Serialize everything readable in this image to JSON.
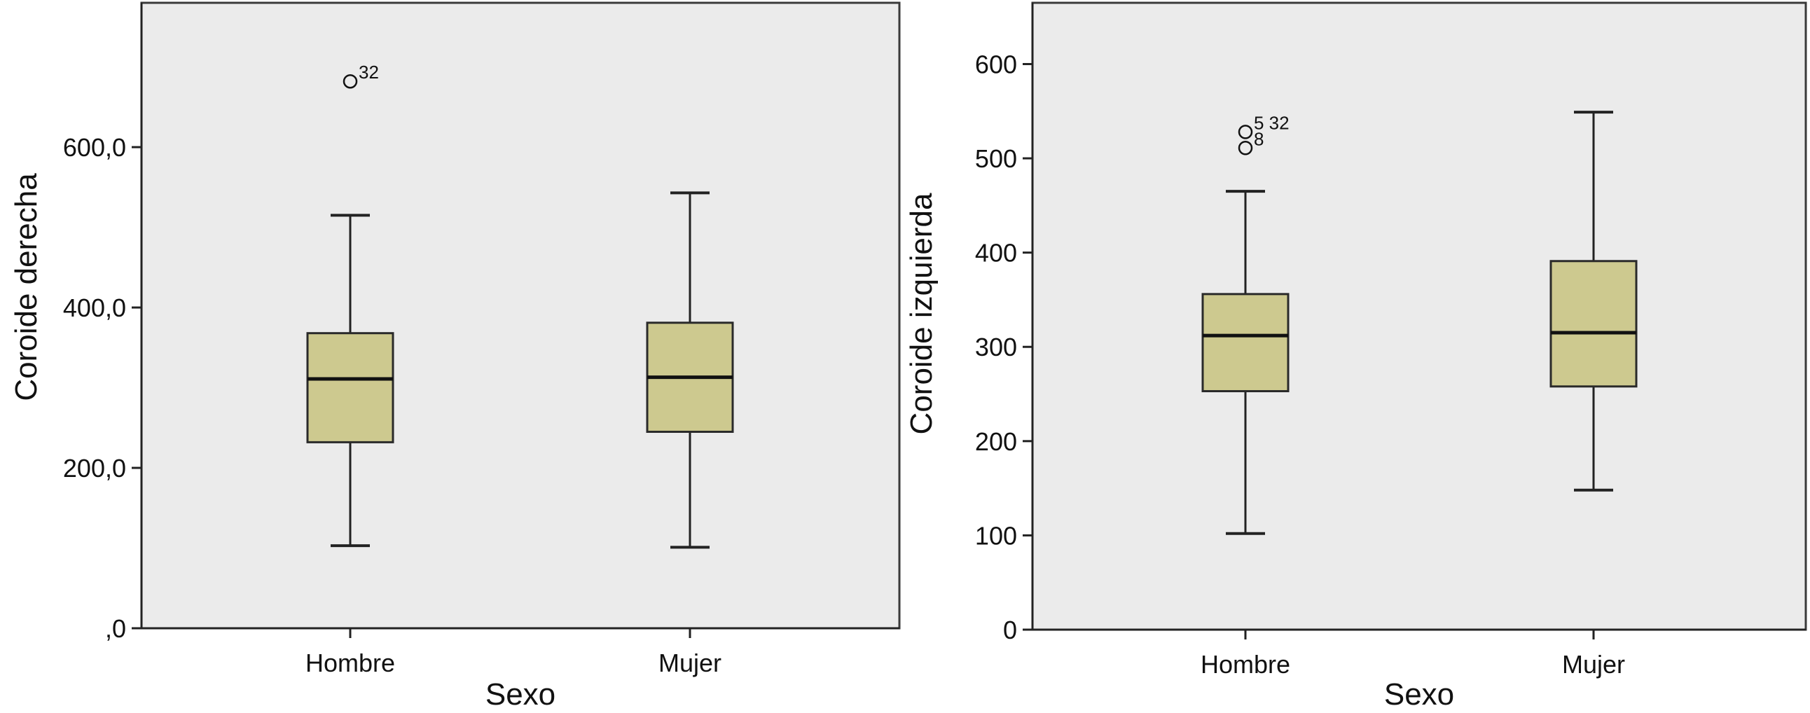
{
  "chart_data": [
    {
      "type": "boxplot",
      "xlabel": "Sexo",
      "ylabel": "Coroide derecha",
      "categories": [
        "Hombre",
        "Mujer"
      ],
      "ylim": [
        0,
        780
      ],
      "yticks": [
        0,
        200,
        400,
        600
      ],
      "ytick_labels": [
        ",0",
        "200,0",
        "400,0",
        "600,0"
      ],
      "grid": false,
      "boxes": [
        {
          "category": "Hombre",
          "whisker_low": 103,
          "q1": 232,
          "median": 311,
          "q3": 368,
          "whisker_high": 515
        },
        {
          "category": "Mujer",
          "whisker_low": 101,
          "q1": 245,
          "median": 313,
          "q3": 381,
          "whisker_high": 543
        }
      ],
      "outliers": [
        {
          "category": "Hombre",
          "value": 682,
          "label": "32"
        }
      ]
    },
    {
      "type": "boxplot",
      "xlabel": "Sexo",
      "ylabel": "Coroide izquierda",
      "categories": [
        "Hombre",
        "Mujer"
      ],
      "ylim": [
        0,
        665
      ],
      "yticks": [
        0,
        100,
        200,
        300,
        400,
        500,
        600
      ],
      "ytick_labels": [
        "0",
        "100",
        "200",
        "300",
        "400",
        "500",
        "600"
      ],
      "grid": false,
      "boxes": [
        {
          "category": "Hombre",
          "whisker_low": 102,
          "q1": 253,
          "median": 312,
          "q3": 356,
          "whisker_high": 465
        },
        {
          "category": "Mujer",
          "whisker_low": 148,
          "q1": 258,
          "median": 315,
          "q3": 391,
          "whisker_high": 549
        }
      ],
      "outliers": [
        {
          "category": "Hombre",
          "value": 528,
          "label": "5 32"
        },
        {
          "category": "Hombre",
          "value": 511,
          "label": "8"
        }
      ]
    }
  ],
  "colors": {
    "box_fill": "#cdc98f",
    "plot_background": "#ebebeb",
    "line": "#222222"
  }
}
